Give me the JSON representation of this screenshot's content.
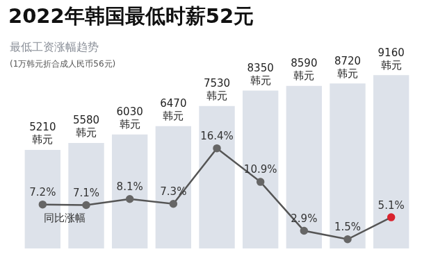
{
  "chart_data": {
    "type": "bar",
    "title": "2022年韩国最低时薪52元",
    "subtitle": "最低工资涨幅趋势",
    "annotations": [
      "(1万韩元折合成人民币56元)"
    ],
    "categories": [
      null,
      null,
      null,
      null,
      null,
      null,
      null,
      null,
      null
    ],
    "series": [
      {
        "type": "bar",
        "color": "#dde2ea",
        "values": [
          5210,
          5580,
          6030,
          6470,
          7530,
          8350,
          8590,
          8720,
          9160
        ],
        "value_labels": [
          "5210\n韩元",
          "5580\n韩元",
          "6030\n韩元",
          "6470\n韩元",
          "7530\n韩元",
          "8350\n韩元",
          "8590\n韩元",
          "8720\n韩元",
          "9160\n韩元"
        ]
      },
      {
        "name": "同比涨幅",
        "type": "line",
        "axis": "y2",
        "color": "#555555",
        "marker": "circle",
        "colors": [
          "#666666",
          "#666666",
          "#666666",
          "#666666",
          "#666666",
          "#666666",
          "#666666",
          "#666666",
          "#d9232e"
        ],
        "values": [
          7.2,
          7.1,
          8.1,
          7.3,
          16.4,
          10.9,
          2.9,
          1.5,
          5.1
        ],
        "value_labels": [
          "7.2%",
          "7.1%",
          "8.1%",
          "7.3%",
          "16.4%",
          "10.9%",
          "2.9%",
          "1.5%",
          "5.1%"
        ]
      }
    ],
    "ylim": [
      0,
      11300
    ],
    "yticks": [
      0,
      11300
    ],
    "y2lim": [
      0,
      35
    ],
    "y2ticks": [
      0,
      35
    ],
    "grid": false,
    "tick_labels": false,
    "data_labels": true
  }
}
